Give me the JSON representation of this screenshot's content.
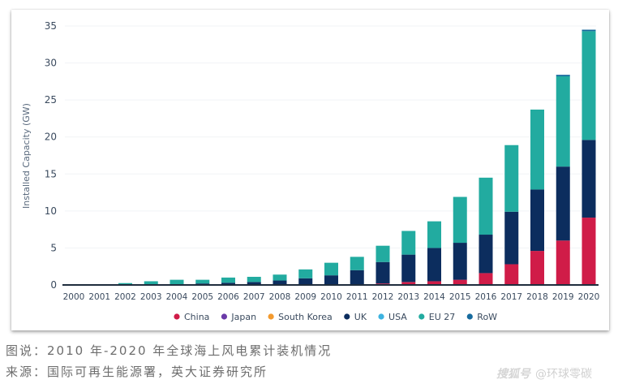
{
  "chart_data": {
    "type": "bar",
    "stacked": true,
    "title": "",
    "xlabel": "",
    "ylabel": "Installed Capacity (GW)",
    "ylim": [
      0,
      35
    ],
    "yticks": [
      0,
      5,
      10,
      15,
      20,
      25,
      30,
      35
    ],
    "grid": true,
    "legend_position": "bottom",
    "categories": [
      "2000",
      "2001",
      "2002",
      "2003",
      "2004",
      "2005",
      "2006",
      "2007",
      "2008",
      "2009",
      "2010",
      "2011",
      "2012",
      "2013",
      "2014",
      "2015",
      "2016",
      "2017",
      "2018",
      "2019",
      "2020"
    ],
    "series": [
      {
        "name": "China",
        "color": "#d01c48",
        "values": [
          0,
          0,
          0,
          0,
          0,
          0,
          0,
          0,
          0,
          0,
          0,
          0.1,
          0.2,
          0.4,
          0.5,
          0.7,
          1.6,
          2.8,
          4.6,
          6.0,
          9.1
        ]
      },
      {
        "name": "Japan",
        "color": "#6a3aa8",
        "values": [
          0,
          0,
          0,
          0,
          0,
          0,
          0,
          0,
          0,
          0,
          0,
          0,
          0,
          0,
          0,
          0,
          0,
          0,
          0,
          0,
          0
        ]
      },
      {
        "name": "South Korea",
        "color": "#f39a2e",
        "values": [
          0,
          0,
          0,
          0,
          0,
          0,
          0,
          0,
          0,
          0,
          0,
          0,
          0,
          0,
          0,
          0,
          0,
          0,
          0,
          0,
          0
        ]
      },
      {
        "name": "UK",
        "color": "#0c2d5e",
        "values": [
          0.05,
          0.07,
          0.05,
          0.1,
          0.1,
          0.2,
          0.3,
          0.4,
          0.6,
          0.9,
          1.3,
          1.9,
          2.9,
          3.7,
          4.5,
          5.0,
          5.2,
          7.1,
          8.3,
          10.0,
          10.5
        ]
      },
      {
        "name": "USA",
        "color": "#3db3e0",
        "values": [
          0,
          0,
          0,
          0,
          0,
          0,
          0,
          0,
          0,
          0,
          0,
          0,
          0,
          0,
          0,
          0,
          0,
          0,
          0,
          0,
          0
        ]
      },
      {
        "name": "EU 27",
        "color": "#22aba0",
        "values": [
          0,
          0,
          0.2,
          0.4,
          0.6,
          0.5,
          0.7,
          0.7,
          0.8,
          1.2,
          1.7,
          1.8,
          2.2,
          3.2,
          3.6,
          6.2,
          7.7,
          9.0,
          10.8,
          12.2,
          14.7
        ]
      },
      {
        "name": "RoW",
        "color": "#176b9e",
        "values": [
          0,
          0,
          0,
          0,
          0,
          0,
          0,
          0,
          0,
          0,
          0,
          0,
          0,
          0,
          0,
          0,
          0,
          0,
          0,
          0.2,
          0.2
        ]
      }
    ]
  },
  "caption": "图说：2010 年-2020 年全球海上风电累计装机情况",
  "source": "来源：国际可再生能源署，英大证券研究所",
  "watermark": {
    "logo": "搜狐号",
    "account": "@环球零碳"
  }
}
